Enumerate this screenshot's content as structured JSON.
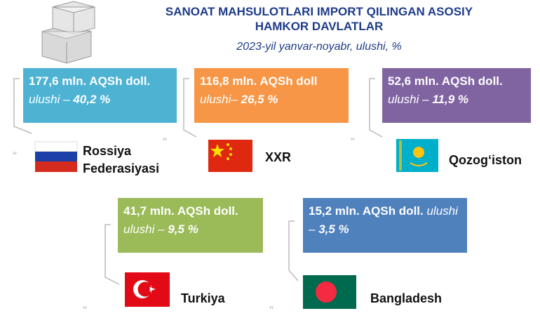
{
  "header": {
    "title_lines": [
      "SANOAT MAHSULOTLARI IMPORT QILINGAN ASOSIY",
      "HAMKOR DAVLATLAR"
    ],
    "subtitle": "2023-yil yanvar-noyabr, ulushi, %"
  },
  "cards": [
    {
      "amount": "177,6 mln. AQSh doll.",
      "share_label": "ulushi –",
      "share": "40,2 %",
      "country": "Rossiya Federasiyasi"
    },
    {
      "amount": "116,8 mln. AQSh doll",
      "share_label": "ulushi–",
      "share": "26,5 %",
      "country": "XXR"
    },
    {
      "amount": "52,6 mln. AQSh doll.",
      "share_label": "ulushi –",
      "share": "11,9 %",
      "country": "Qozog‘iston"
    },
    {
      "amount": "41,7 mln. AQSh doll.",
      "share_label": "ulushi –",
      "share": "9,5 %",
      "country": "Turkiya"
    },
    {
      "amount": "15,2 mln. AQSh doll.",
      "share_label": "ulushi –",
      "share": "3,5 %",
      "country": "Bangladesh"
    }
  ]
}
